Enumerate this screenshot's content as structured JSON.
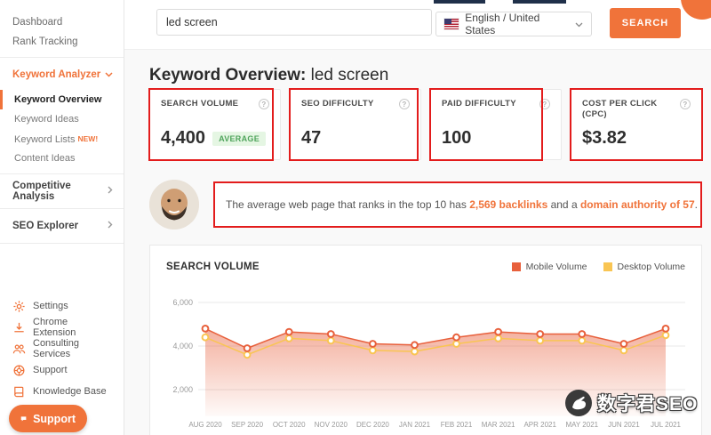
{
  "topbar": {
    "search_value": "led screen",
    "language": "English / United States",
    "search_button": "SEARCH"
  },
  "heading": {
    "prefix": "Keyword Overview:",
    "keyword": "led screen"
  },
  "sidebar": {
    "dashboard": "Dashboard",
    "rank_tracking": "Rank Tracking",
    "keyword_analyzer": "Keyword Analyzer",
    "submenu": {
      "overview": "Keyword Overview",
      "ideas": "Keyword Ideas",
      "lists": "Keyword Lists",
      "lists_badge": "NEW!",
      "content_ideas": "Content Ideas"
    },
    "competitive_analysis": "Competitive Analysis",
    "seo_explorer": "SEO Explorer",
    "utility": {
      "settings": "Settings",
      "chrome_extension": "Chrome Extension",
      "consulting": "Consulting Services",
      "support": "Support",
      "knowledge_base": "Knowledge Base"
    },
    "support_button": "Support"
  },
  "metrics": {
    "search_volume": {
      "label": "SEARCH VOLUME",
      "value": "4,400",
      "badge": "AVERAGE"
    },
    "seo_difficulty": {
      "label": "SEO DIFFICULTY",
      "value": "47"
    },
    "paid_difficulty": {
      "label": "PAID DIFFICULTY",
      "value": "100"
    },
    "cpc": {
      "label": "COST PER CLICK (CPC)",
      "value": "$3.82"
    }
  },
  "insight": {
    "prefix": "The average web page that ranks in the top 10 has ",
    "backlinks": "2,569 backlinks",
    "middle": " and a ",
    "domain_authority": "domain authority of 57",
    "suffix": "."
  },
  "chart_data": {
    "type": "line",
    "title": "SEARCH VOLUME",
    "categories": [
      "AUG 2020",
      "SEP 2020",
      "OCT 2020",
      "NOV 2020",
      "DEC 2020",
      "JAN 2021",
      "FEB 2021",
      "MAR 2021",
      "APR 2021",
      "MAY 2021",
      "JUN 2021",
      "JUL 2021"
    ],
    "series": [
      {
        "name": "Mobile Volume",
        "color": "#e8603c",
        "values": [
          4800,
          3900,
          4650,
          4550,
          4100,
          4050,
          4400,
          4650,
          4550,
          4550,
          4100,
          4800
        ]
      },
      {
        "name": "Desktop Volume",
        "color": "#f9c553",
        "values": [
          4400,
          3600,
          4350,
          4250,
          3800,
          3750,
          4100,
          4350,
          4250,
          4250,
          3800,
          4500
        ]
      }
    ],
    "y_ticks": [
      6000,
      4000,
      2000
    ],
    "ylim": [
      0,
      6000
    ],
    "grid": true,
    "legend_position": "top-right",
    "area_fill": true
  },
  "annotations": {
    "highlight_color": "#e31c1c"
  },
  "watermark": {
    "text": "数字君SEO"
  },
  "colors": {
    "accent": "#f0733a",
    "badge_bg": "#e5f6e3",
    "badge_text": "#50a45c"
  }
}
